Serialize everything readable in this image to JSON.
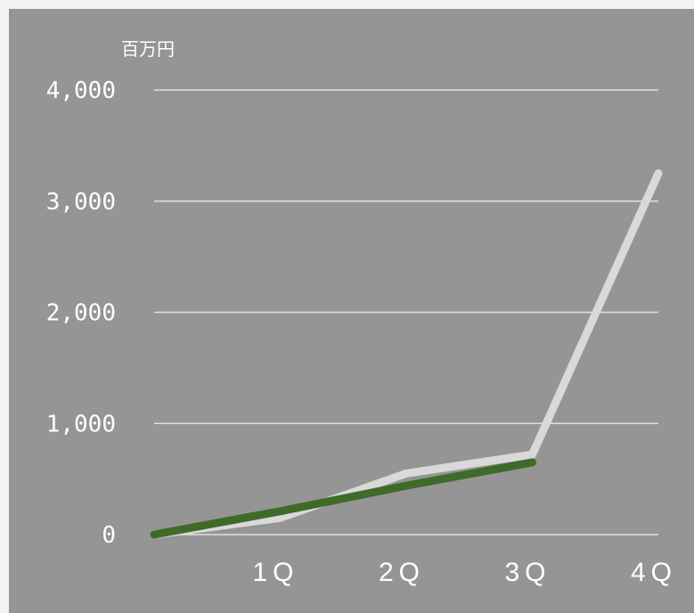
{
  "chart_data": {
    "type": "line",
    "unit_label": "百万円",
    "categories": [
      "",
      "1Q",
      "2Q",
      "3Q",
      "4Q"
    ],
    "x_tick_labels": [
      "1Q",
      "2Q",
      "3Q",
      "4Q"
    ],
    "y_tick_labels": [
      "0",
      "1,000",
      "2,000",
      "3,000",
      "4,000"
    ],
    "ylim": [
      0,
      4000
    ],
    "grid": true,
    "series": [
      {
        "values": [
          0,
          150,
          550,
          720,
          3250
        ],
        "color": "#d9d9d9"
      },
      {
        "values": [
          0,
          210,
          440,
          650,
          null
        ],
        "color": "#3e6b2a"
      }
    ]
  }
}
